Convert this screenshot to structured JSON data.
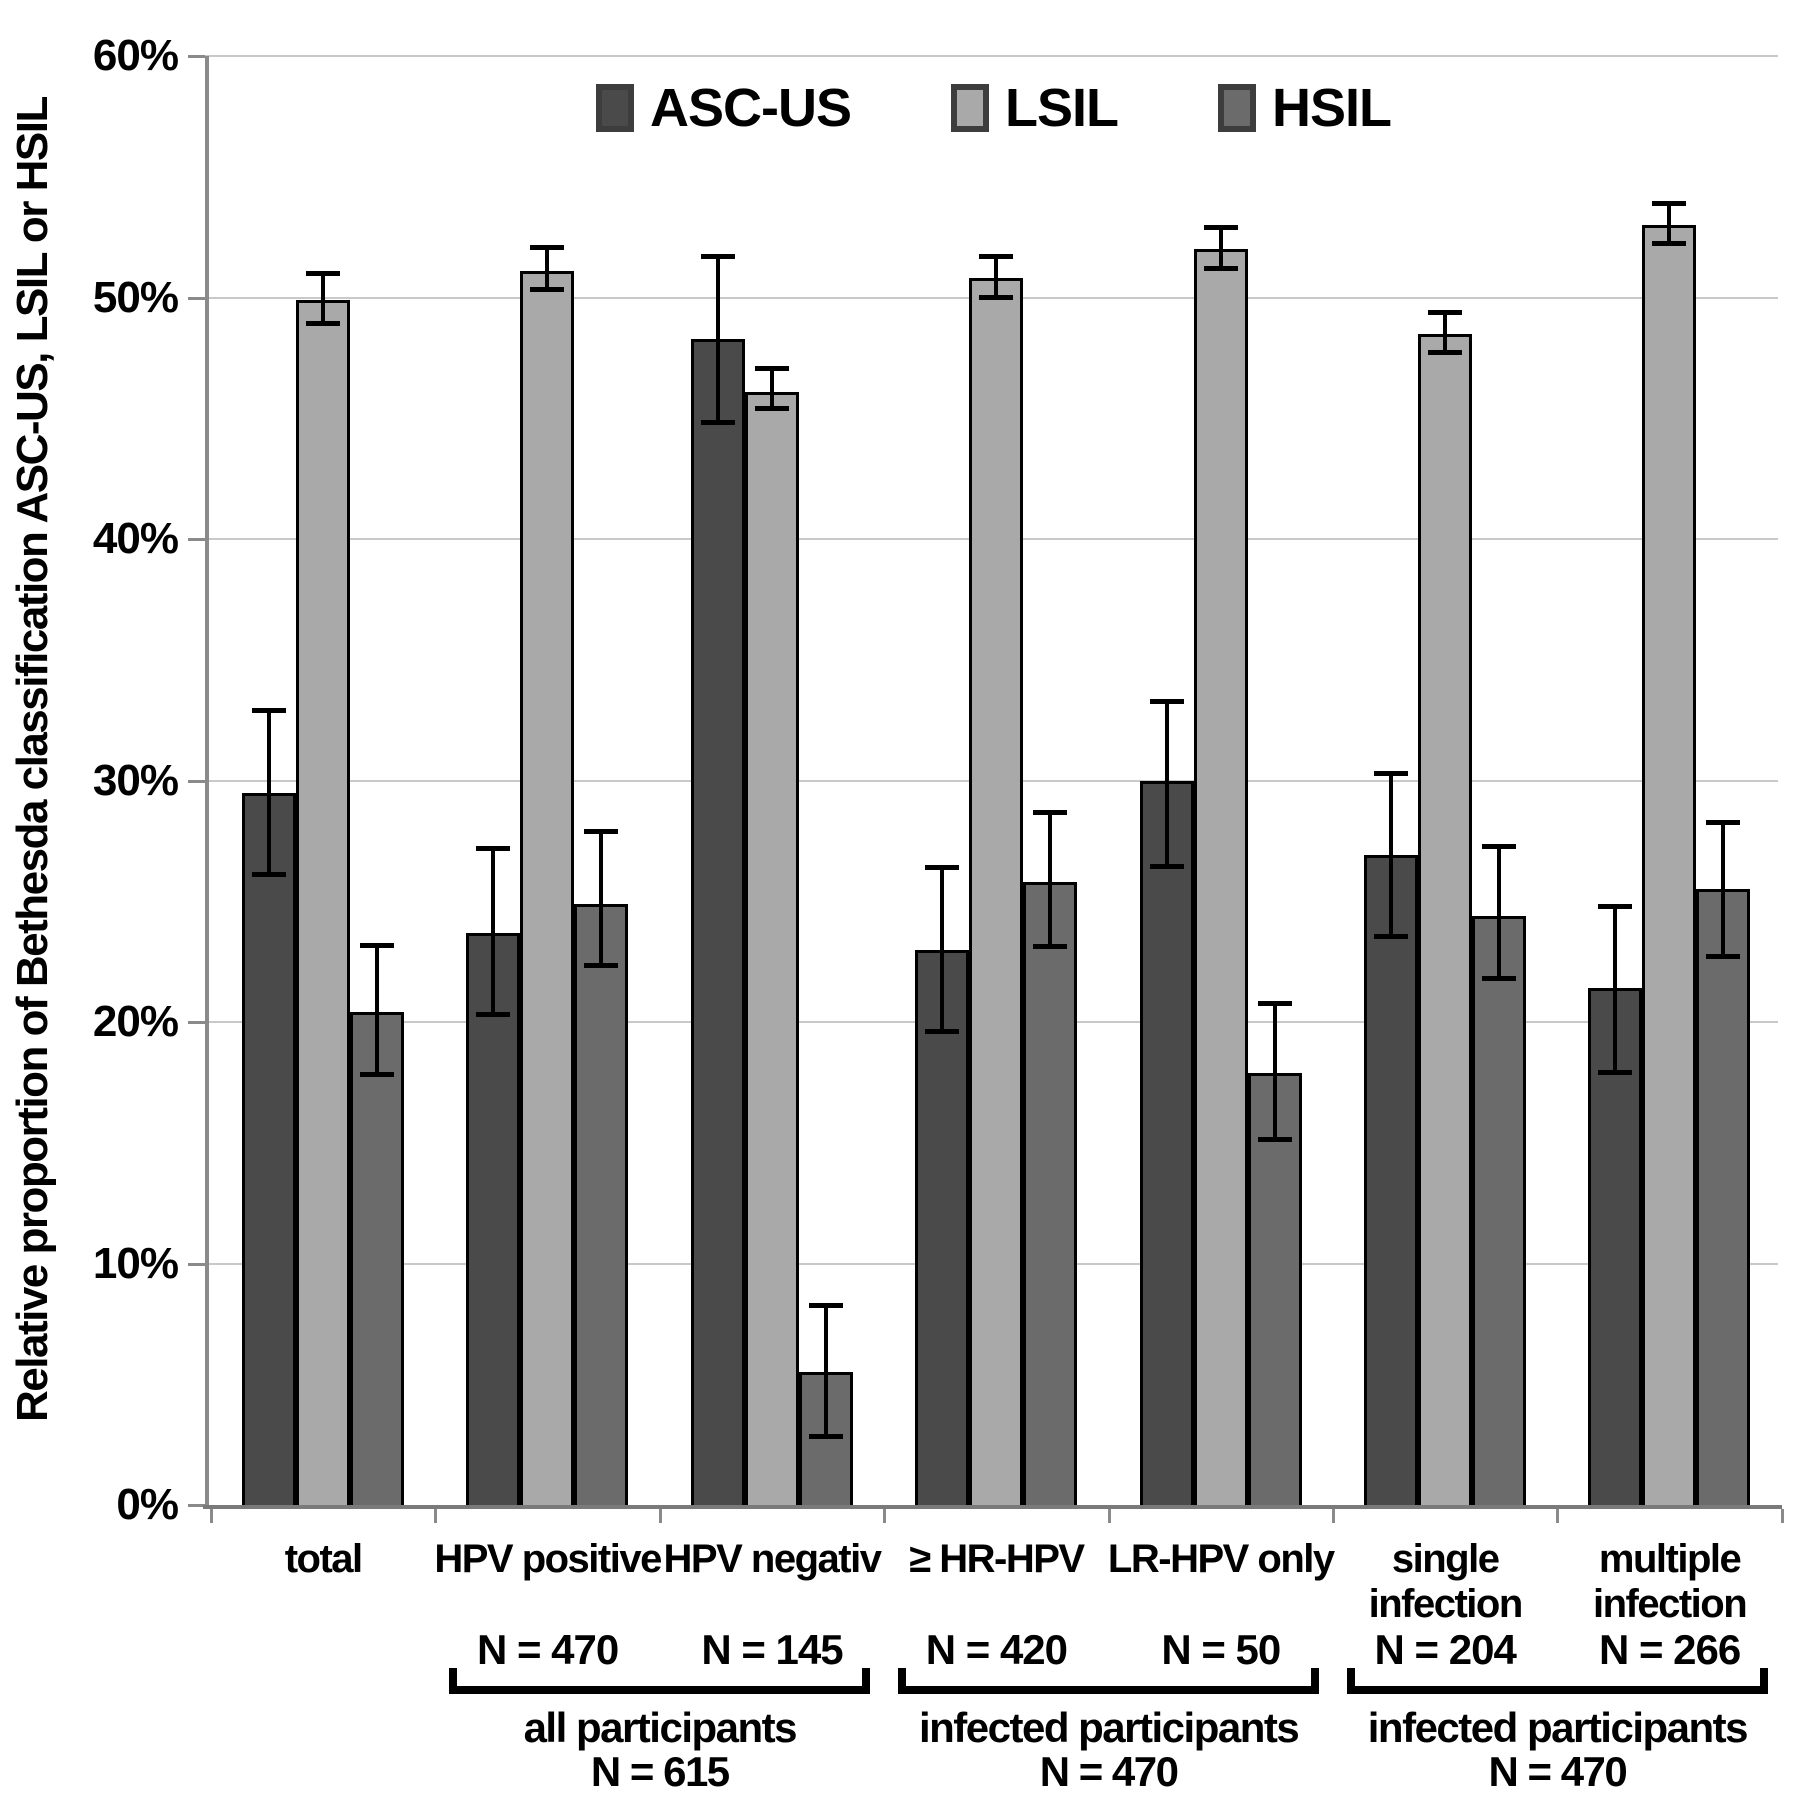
{
  "chart_data": {
    "type": "bar",
    "title": "",
    "xlabel": "",
    "ylabel": "Relative proportion  of Bethesda  classification  ASC-US,  LSIL  or HSIL",
    "ylim": [
      0,
      60
    ],
    "yticks": [
      0,
      10,
      20,
      30,
      40,
      50,
      60
    ],
    "ytick_suffix": "%",
    "grid": true,
    "legend_position": "top-center",
    "categories": [
      "total",
      "HPV positive",
      "HPV negativ",
      "≥ HR-HPV",
      "LR-HPV only",
      "single\ninfection",
      "multiple\ninfection"
    ],
    "series": [
      {
        "name": "ASC-US",
        "color": "#4a4a4a",
        "values": [
          29.5,
          23.7,
          48.3,
          23.0,
          30.0,
          26.9,
          21.4
        ],
        "error_low": [
          26.1,
          20.3,
          44.8,
          19.6,
          26.4,
          23.5,
          17.9
        ],
        "error_high": [
          32.9,
          27.2,
          51.7,
          26.4,
          33.3,
          30.3,
          24.8
        ]
      },
      {
        "name": "LSIL",
        "color": "#a9a9a9",
        "values": [
          49.9,
          51.1,
          46.1,
          50.8,
          52.0,
          48.5,
          53.0
        ],
        "error_low": [
          48.9,
          50.3,
          45.4,
          50.0,
          51.2,
          47.7,
          52.2
        ],
        "error_high": [
          51.0,
          52.1,
          47.1,
          51.7,
          52.9,
          49.4,
          53.9
        ]
      },
      {
        "name": "HSIL",
        "color": "#6b6b6b",
        "values": [
          20.4,
          24.9,
          5.5,
          25.8,
          17.9,
          24.4,
          25.5
        ],
        "error_low": [
          17.8,
          22.3,
          2.8,
          23.1,
          15.1,
          21.8,
          22.7
        ],
        "error_high": [
          23.2,
          27.9,
          8.3,
          28.7,
          20.8,
          27.3,
          28.3
        ]
      }
    ],
    "group_n_labels": [
      "",
      "N = 470",
      "N = 145",
      "N = 420",
      "N = 50",
      "N = 204",
      "N = 266"
    ],
    "brackets": [
      {
        "from": 1,
        "to": 2,
        "caption": "all participants",
        "n": "N = 615"
      },
      {
        "from": 3,
        "to": 4,
        "caption": "infected participants",
        "n": "N = 470"
      },
      {
        "from": 5,
        "to": 6,
        "caption": "infected participants",
        "n": "N = 470"
      }
    ],
    "colors": {
      "gridline": "#c9c9c9",
      "axis": "#8a8a8a",
      "bar_outline": "#000000",
      "background": "#ffffff"
    }
  }
}
